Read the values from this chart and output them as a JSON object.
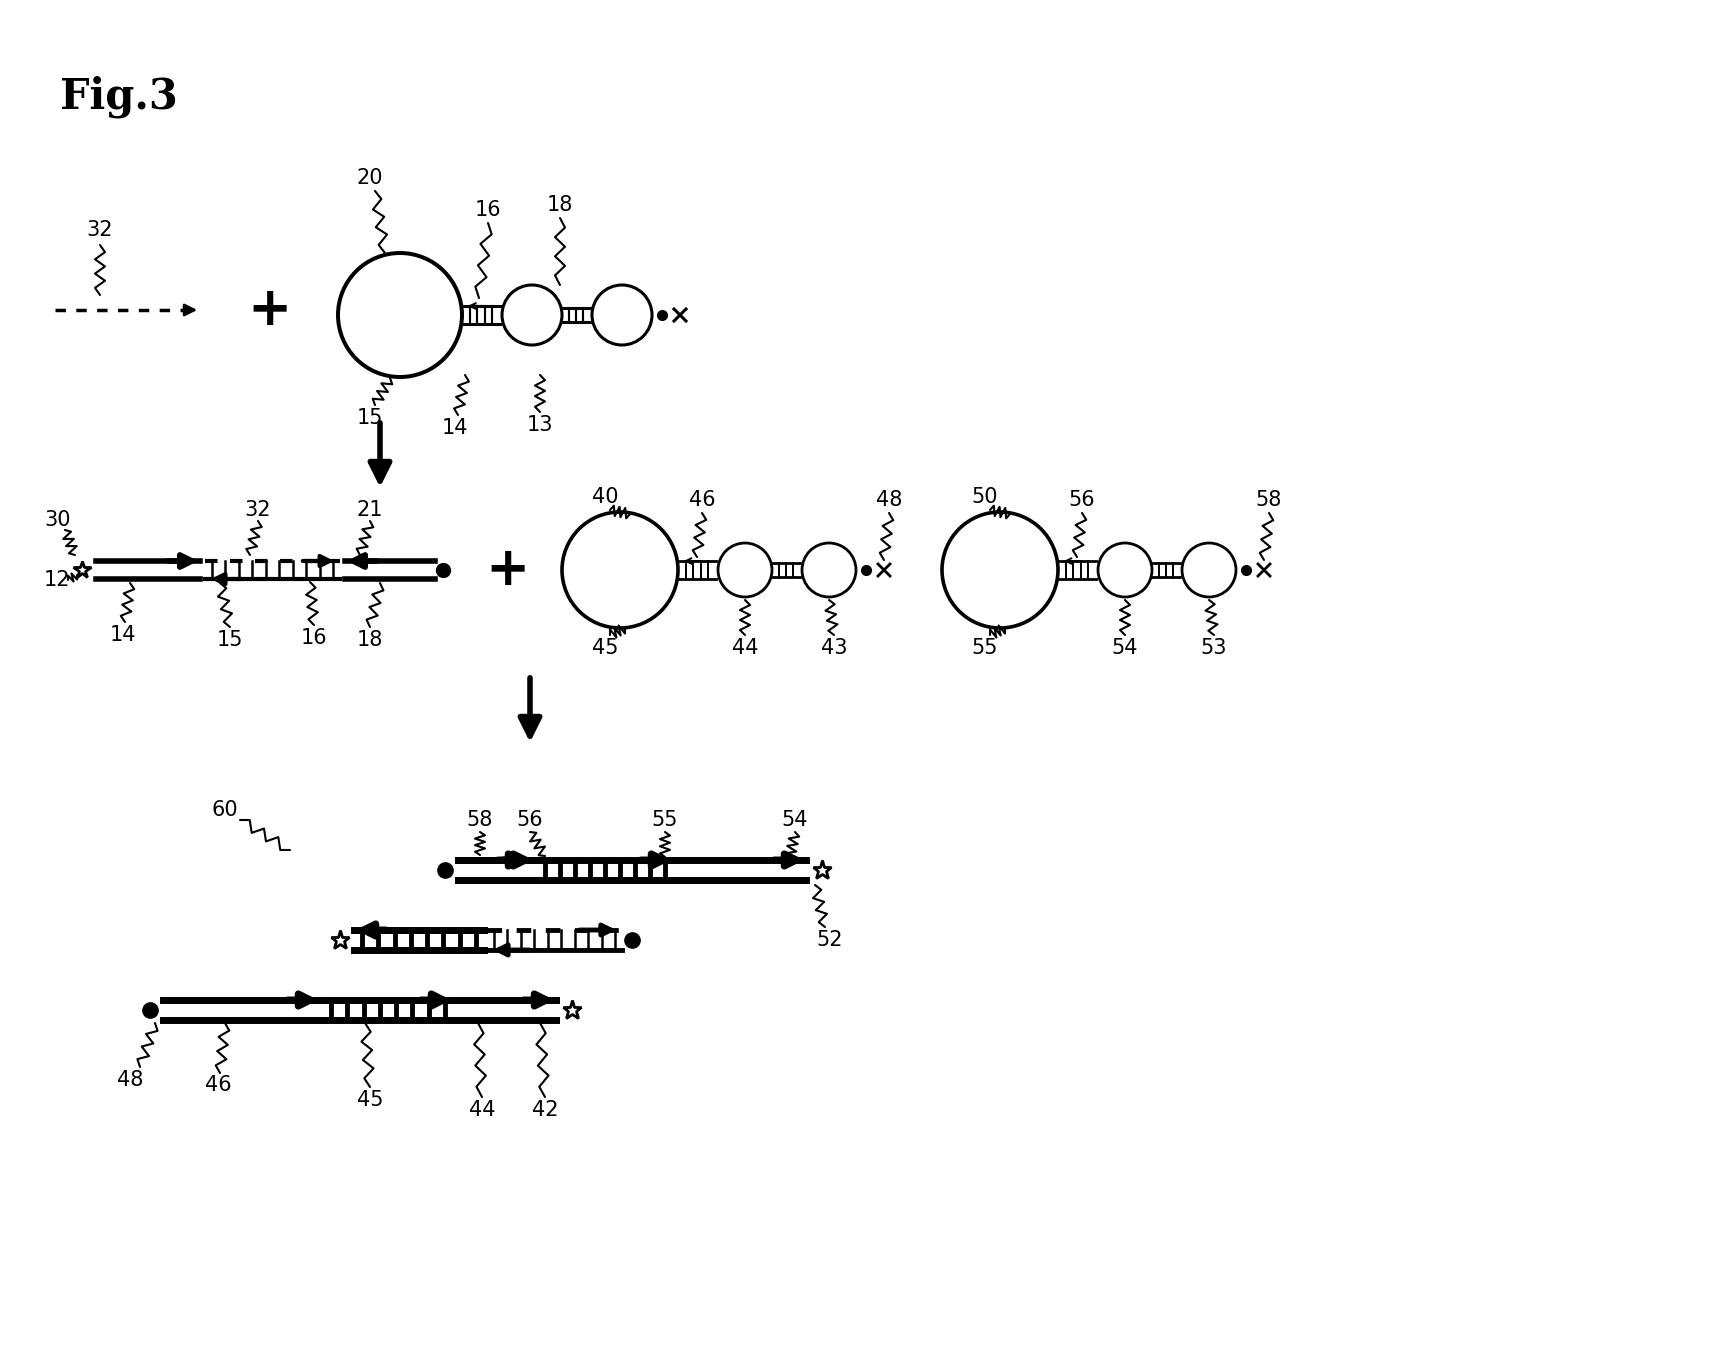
{
  "bg_color": "#ffffff",
  "fig_width": 17.33,
  "fig_height": 13.72
}
